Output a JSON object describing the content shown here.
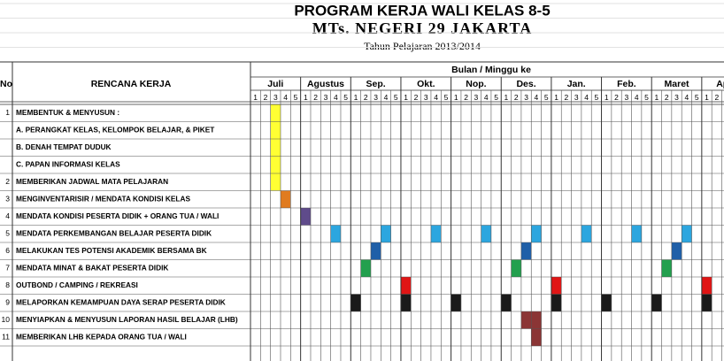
{
  "header": {
    "title": "PROGRAM KERJA WALI KELAS 8-5",
    "school": "MTs. NEGERI  29  JAKARTA",
    "year": "Tahun Pelajaran 2013/2014"
  },
  "table": {
    "col_no": "No",
    "col_plan": "RENCANA KERJA",
    "col_schedule": "Bulan / Minggu ke",
    "months": [
      "Juli",
      "Agustus",
      "Sep.",
      "Okt.",
      "Nop.",
      "Des.",
      "Jan.",
      "Feb.",
      "Maret",
      "April"
    ],
    "week_numbers": [
      "1",
      "2",
      "3",
      "4",
      "5"
    ],
    "rows": [
      {
        "no": "1",
        "text": "MEMBENTUK & MENYUSUN :"
      },
      {
        "text": "A. PERANGKAT KELAS, KELOMPOK BELAJAR, & PIKET"
      },
      {
        "text": "B. DENAH TEMPAT DUDUK"
      },
      {
        "text": "C. PAPAN INFORMASI KELAS"
      },
      {
        "no": "2",
        "text": "MEMBERIKAN JADWAL MATA PELAJARAN"
      },
      {
        "no": "3",
        "text": "MENGINVENTARISIR / MENDATA KONDISI KELAS"
      },
      {
        "no": "4",
        "text": "MENDATA KONDISI PESERTA DIDIK + ORANG TUA / WALI"
      },
      {
        "no": "5",
        "text": "MENDATA PERKEMBANGAN BELAJAR PESERTA DIDIK"
      },
      {
        "no": "6",
        "text": "MELAKUKAN TES POTENSI AKADEMIK BERSAMA BK"
      },
      {
        "no": "7",
        "text": "MENDATA MINAT & BAKAT PESERTA DIDIK"
      },
      {
        "no": "8",
        "text": "OUTBOND / CAMPING / REKREASI"
      },
      {
        "no": "9",
        "text": "MELAPORKAN KEMAMPUAN DAYA SERAP PESERTA DIDIK"
      },
      {
        "no": "10",
        "text": "MENYIAPKAN & MENYUSUN LAPORAN HASIL BELAJAR (LHB)"
      },
      {
        "no": "11",
        "text": "MEMBERIKAN LHB KEPADA ORANG TUA / WALI"
      }
    ]
  }
}
